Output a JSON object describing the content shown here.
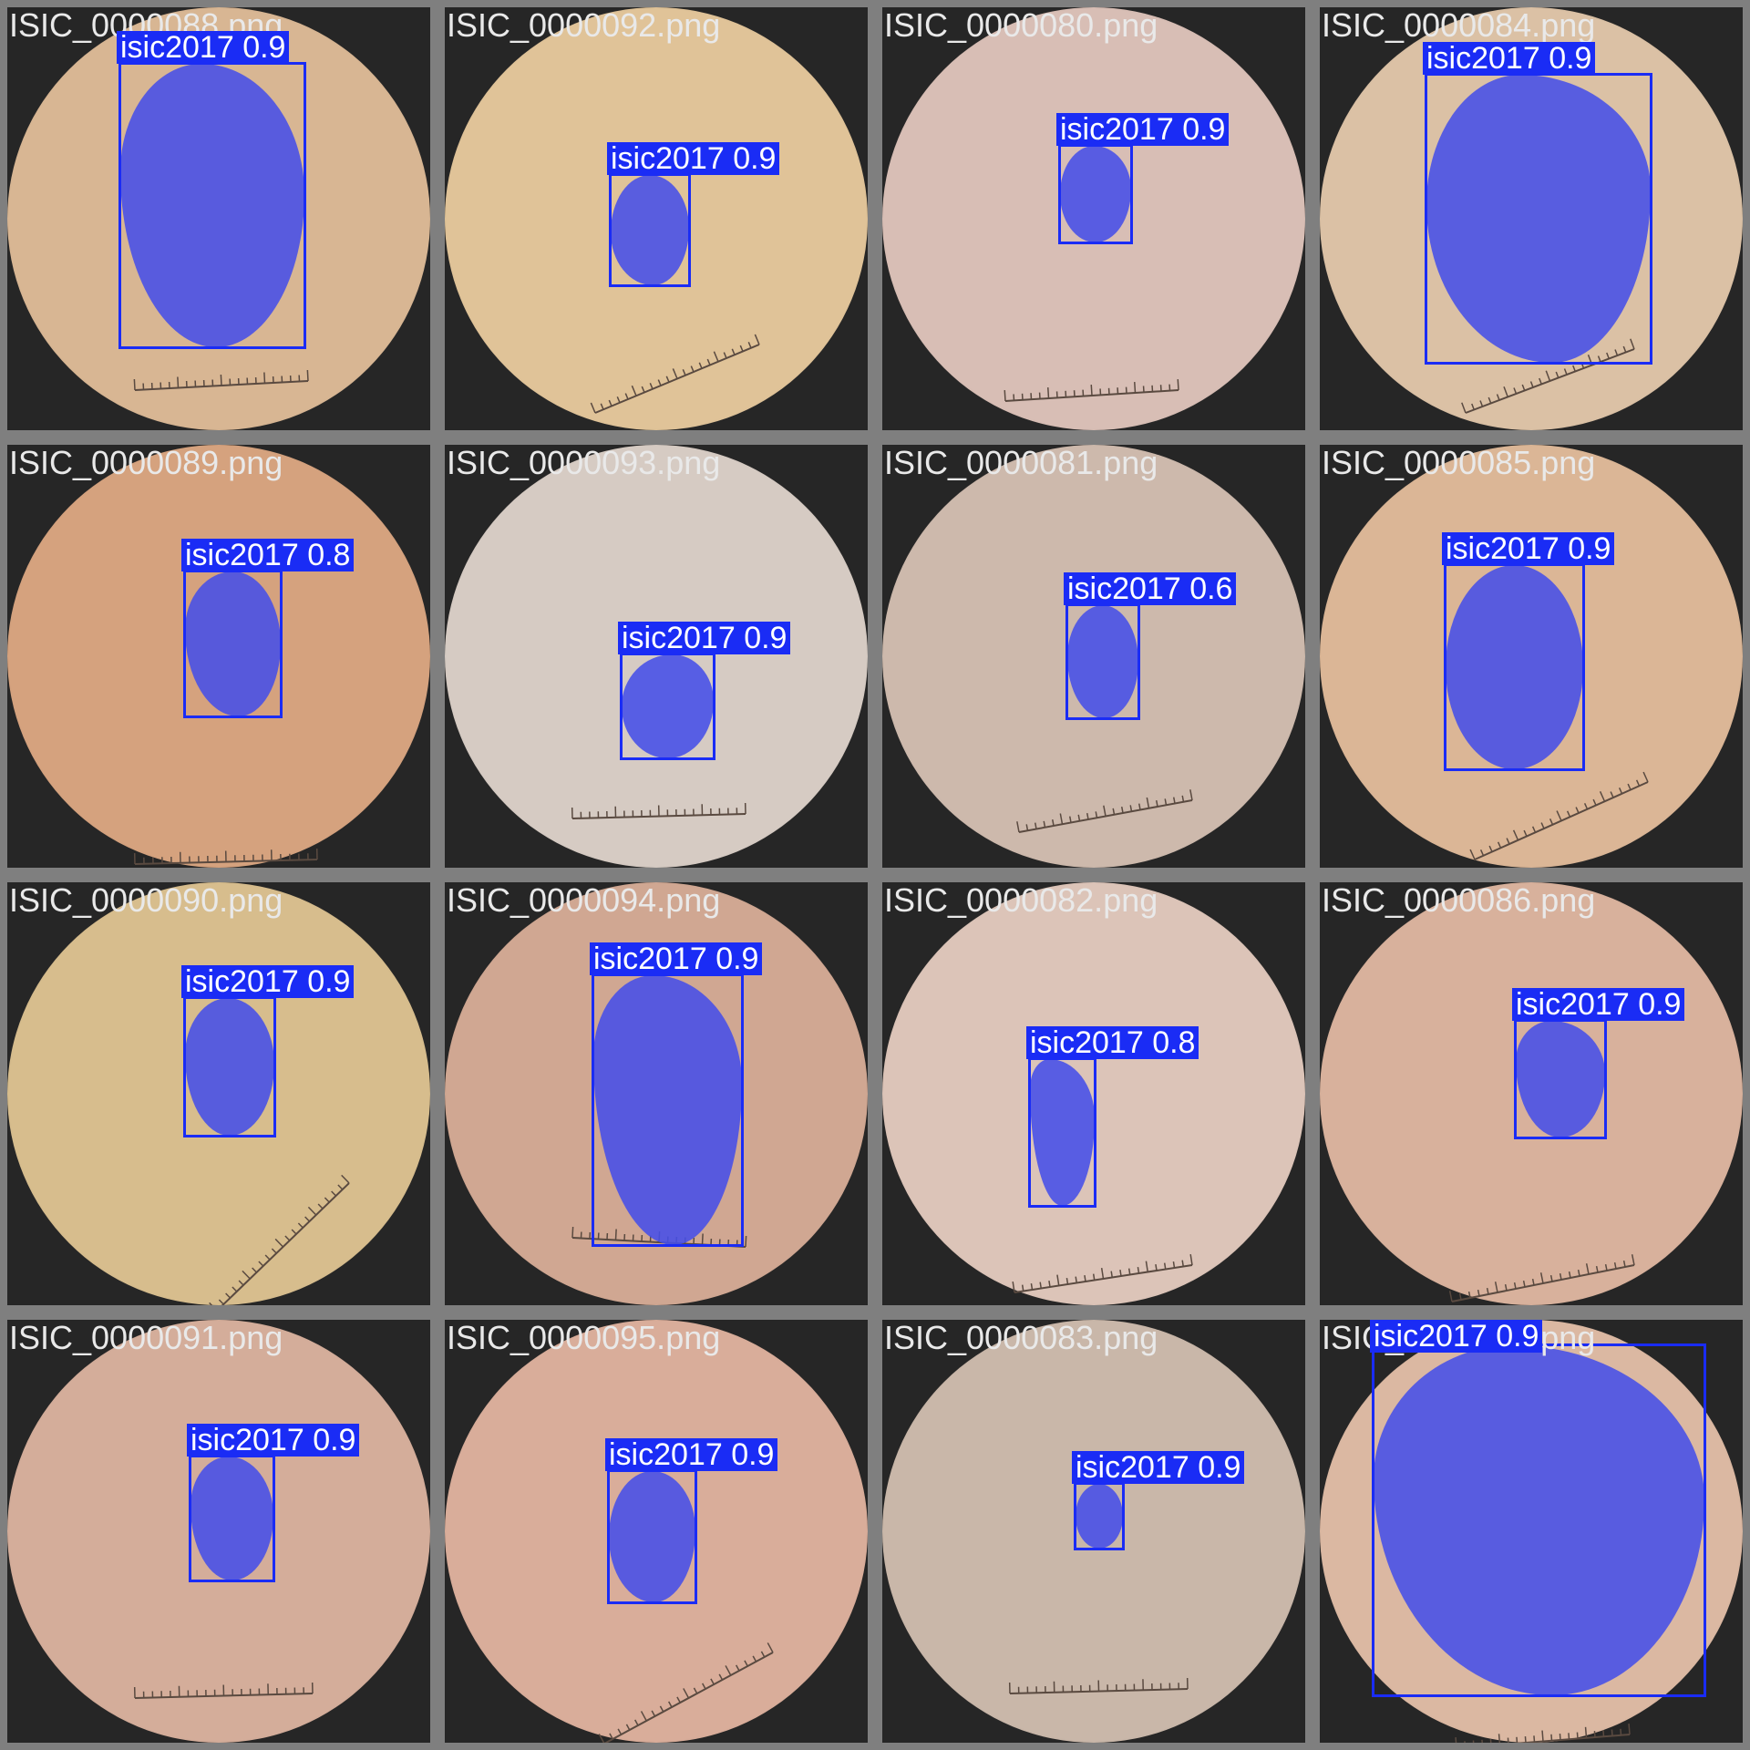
{
  "mosaic": {
    "bbox_color": "#1a2cf5",
    "mask_color": "#464ee8",
    "label_text_color": "#ffffff",
    "filename_text_color": "#e9e9e9",
    "border_color": "#7f7f7f"
  },
  "tiles": [
    {
      "filename": "ISIC_0000088.png",
      "skin": "#d8b693",
      "label": "isic2017 0.9",
      "class": "isic2017",
      "confidence": 0.9
    },
    {
      "filename": "ISIC_0000092.png",
      "skin": "#e0c398",
      "label": "isic2017 0.9",
      "class": "isic2017",
      "confidence": 0.9
    },
    {
      "filename": "ISIC_0000080.png",
      "skin": "#d8beb5",
      "label": "isic2017 0.9",
      "class": "isic2017",
      "confidence": 0.9
    },
    {
      "filename": "ISIC_0000084.png",
      "skin": "#dbc1a5",
      "label": "isic2017 0.9",
      "class": "isic2017",
      "confidence": 0.9
    },
    {
      "filename": "ISIC_0000089.png",
      "skin": "#d5a27e",
      "label": "isic2017 0.8",
      "class": "isic2017",
      "confidence": 0.8
    },
    {
      "filename": "ISIC_0000093.png",
      "skin": "#d6cbc3",
      "label": "isic2017 0.9",
      "class": "isic2017",
      "confidence": 0.9
    },
    {
      "filename": "ISIC_0000081.png",
      "skin": "#cdb9ac",
      "label": "isic2017 0.6",
      "class": "isic2017",
      "confidence": 0.6
    },
    {
      "filename": "ISIC_0000085.png",
      "skin": "#dbb696",
      "label": "isic2017 0.9",
      "class": "isic2017",
      "confidence": 0.9
    },
    {
      "filename": "ISIC_0000090.png",
      "skin": "#d7bd8d",
      "label": "isic2017 0.9",
      "class": "isic2017",
      "confidence": 0.9
    },
    {
      "filename": "ISIC_0000094.png",
      "skin": "#d0a792",
      "label": "isic2017 0.9",
      "class": "isic2017",
      "confidence": 0.9
    },
    {
      "filename": "ISIC_0000082.png",
      "skin": "#dcc4b8",
      "label": "isic2017 0.8",
      "class": "isic2017",
      "confidence": 0.8
    },
    {
      "filename": "ISIC_0000086.png",
      "skin": "#d8b19c",
      "label": "isic2017 0.9",
      "class": "isic2017",
      "confidence": 0.9
    },
    {
      "filename": "ISIC_0000091.png",
      "skin": "#d4ad9a",
      "label": "isic2017 0.9",
      "class": "isic2017",
      "confidence": 0.9
    },
    {
      "filename": "ISIC_0000095.png",
      "skin": "#d9ad9a",
      "label": "isic2017 0.9",
      "class": "isic2017",
      "confidence": 0.9
    },
    {
      "filename": "ISIC_0000083.png",
      "skin": "#c9b7a9",
      "label": "isic2017 0.9",
      "class": "isic2017",
      "confidence": 0.9
    },
    {
      "filename": "ISIC_0000087.png",
      "skin": "#dbb8a2",
      "label": "isic2017 0.9",
      "class": "isic2017",
      "confidence": 0.9
    }
  ]
}
